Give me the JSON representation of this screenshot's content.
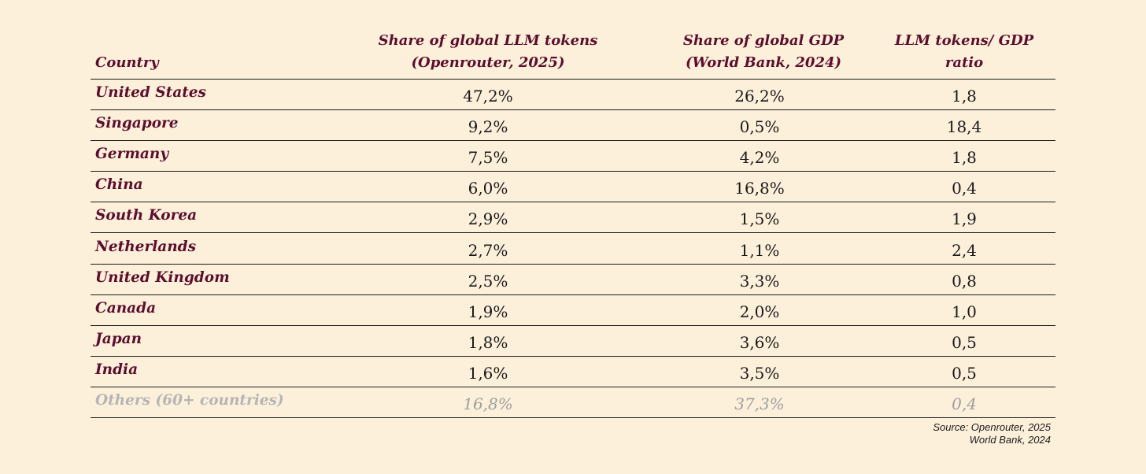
{
  "chart_data": {
    "type": "table",
    "columns": [
      {
        "key": "country",
        "label_lines": [
          "Country"
        ]
      },
      {
        "key": "llm_share",
        "label_lines": [
          "Share of global LLM tokens",
          "(Openrouter, 2025)"
        ]
      },
      {
        "key": "gdp_share",
        "label_lines": [
          "Share of global GDP",
          "(World Bank, 2024)"
        ]
      },
      {
        "key": "ratio",
        "label_lines": [
          "LLM tokens/ GDP",
          "ratio"
        ]
      }
    ],
    "rows": [
      {
        "country": "United States",
        "llm_share": "47,2%",
        "gdp_share": "26,2%",
        "ratio": "1,8"
      },
      {
        "country": "Singapore",
        "llm_share": "9,2%",
        "gdp_share": "0,5%",
        "ratio": "18,4"
      },
      {
        "country": "Germany",
        "llm_share": "7,5%",
        "gdp_share": "4,2%",
        "ratio": "1,8"
      },
      {
        "country": "China",
        "llm_share": "6,0%",
        "gdp_share": "16,8%",
        "ratio": "0,4"
      },
      {
        "country": "South Korea",
        "llm_share": "2,9%",
        "gdp_share": "1,5%",
        "ratio": "1,9"
      },
      {
        "country": "Netherlands",
        "llm_share": "2,7%",
        "gdp_share": "1,1%",
        "ratio": "2,4"
      },
      {
        "country": "United Kingdom",
        "llm_share": "2,5%",
        "gdp_share": "3,3%",
        "ratio": "0,8"
      },
      {
        "country": "Canada",
        "llm_share": "1,9%",
        "gdp_share": "2,0%",
        "ratio": "1,0"
      },
      {
        "country": "Japan",
        "llm_share": "1,8%",
        "gdp_share": "3,6%",
        "ratio": "0,5"
      },
      {
        "country": "India",
        "llm_share": "1,6%",
        "gdp_share": "3,5%",
        "ratio": "0,5"
      },
      {
        "country": "Others (60+ countries)",
        "llm_share": "16,8%",
        "gdp_share": "37,3%",
        "ratio": "0,4",
        "muted": true
      }
    ]
  },
  "source": {
    "line1": "Source: Openrouter, 2025",
    "line2": "World Bank, 2024"
  },
  "colors": {
    "background": "#fdf0da",
    "country_text": "#5b0f2e",
    "value_text": "#1a1a1a",
    "muted_text": "#9e9e9e",
    "rule": "#1a1a1a"
  }
}
